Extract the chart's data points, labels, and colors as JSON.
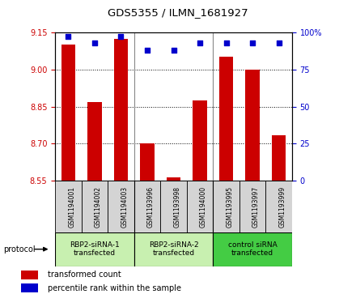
{
  "title": "GDS5355 / ILMN_1681927",
  "samples": [
    "GSM1194001",
    "GSM1194002",
    "GSM1194003",
    "GSM1193996",
    "GSM1193998",
    "GSM1194000",
    "GSM1193995",
    "GSM1193997",
    "GSM1193999"
  ],
  "bar_values": [
    9.1,
    8.867,
    9.125,
    8.7,
    8.565,
    8.875,
    9.05,
    9.0,
    8.735
  ],
  "dot_values": [
    97,
    93,
    97,
    88,
    88,
    93,
    93,
    93,
    93
  ],
  "bar_color": "#cc0000",
  "dot_color": "#0000cc",
  "ylim_left": [
    8.55,
    9.15
  ],
  "ylim_right": [
    0,
    100
  ],
  "yticks_left": [
    8.55,
    8.7,
    8.85,
    9.0,
    9.15
  ],
  "yticks_right": [
    0,
    25,
    50,
    75,
    100
  ],
  "ytick_labels_right": [
    "0",
    "25",
    "50",
    "75",
    "100%"
  ],
  "groups": [
    {
      "label": "RBP2-siRNA-1\ntransfected",
      "indices": [
        0,
        1,
        2
      ],
      "color": "#c8f0b0"
    },
    {
      "label": "RBP2-siRNA-2\ntransfected",
      "indices": [
        3,
        4,
        5
      ],
      "color": "#c8f0b0"
    },
    {
      "label": "control siRNA\ntransfected",
      "indices": [
        6,
        7,
        8
      ],
      "color": "#44cc44"
    }
  ],
  "sample_bg_color": "#d4d4d4",
  "protocol_label": "protocol",
  "legend_bar_label": "transformed count",
  "legend_dot_label": "percentile rank within the sample",
  "grid_color": "#000000",
  "tick_label_color_left": "#cc0000",
  "tick_label_color_right": "#0000cc",
  "group_boundary_color": "#888888"
}
